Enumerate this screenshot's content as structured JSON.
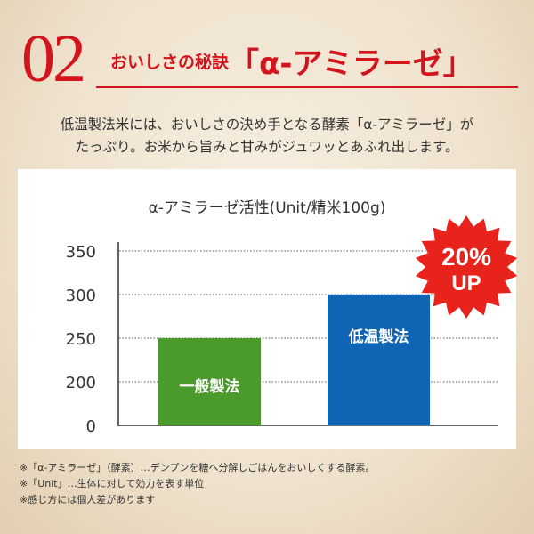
{
  "header": {
    "number": "02",
    "subtitle": "おいしさの秘訣",
    "title": "「α-アミラーゼ」"
  },
  "intro": [
    "低温製法米には、おいしさの決め手となる酵素「α-アミラーゼ」が",
    "たっぷり。お米から旨みと甘みがジュワッとあふれ出します。"
  ],
  "badge": {
    "percent": "20%",
    "label": "UP",
    "color": "#e8231c"
  },
  "chart_data": {
    "type": "bar",
    "title": "α-アミラーゼ活性(Unit/精米100g)",
    "categories": [
      "一般製法",
      "低温製法"
    ],
    "values": [
      250,
      300
    ],
    "colors": [
      "#4a9a2c",
      "#1064b4"
    ],
    "yticks": [
      0,
      200,
      250,
      300,
      350
    ],
    "ylim": [
      0,
      350
    ],
    "axis_break": "0–200",
    "grid": true
  },
  "notes": [
    "※「α-アミラーゼ」（酵素）…デンプンを糖へ分解しごはんをおいしくする酵素。",
    "※「Unit」…生体に対して効力を表す単位",
    "※感じ方には個人差があります"
  ]
}
